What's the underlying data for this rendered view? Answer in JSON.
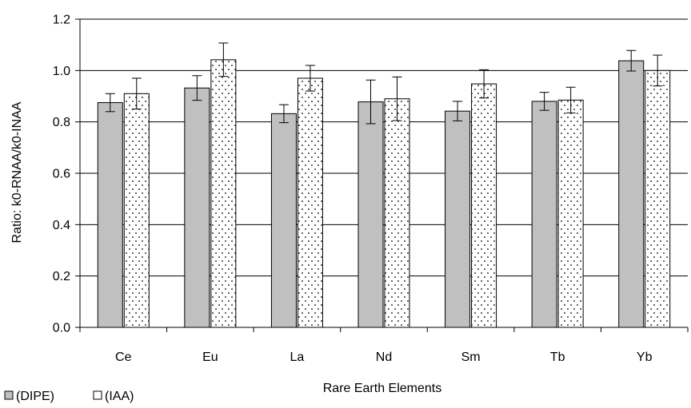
{
  "chart_data": {
    "type": "bar",
    "title": "",
    "xlabel": "Rare Earth Elements",
    "ylabel": "Ratio: k0-RNAA/k0-INAA",
    "categories": [
      "Ce",
      "Eu",
      "La",
      "Nd",
      "Sm",
      "Tb",
      "Yb"
    ],
    "ylim": [
      0,
      1.2
    ],
    "yticks": [
      "0.0",
      "0.2",
      "0.4",
      "0.6",
      "0.8",
      "1.0",
      "1.2"
    ],
    "grid": true,
    "legend_position": "bottom-left",
    "series": [
      {
        "name": "(DIPE)",
        "fill": "#c0c0c0",
        "pattern": "solid",
        "values": [
          0.875,
          0.932,
          0.832,
          0.878,
          0.842,
          0.88,
          1.038
        ],
        "errors": [
          0.035,
          0.048,
          0.035,
          0.085,
          0.038,
          0.035,
          0.04
        ]
      },
      {
        "name": "(IAA)",
        "fill": "#ffffff",
        "pattern": "dots",
        "values": [
          0.91,
          1.042,
          0.97,
          0.89,
          0.948,
          0.885,
          1.0
        ],
        "errors": [
          0.06,
          0.065,
          0.05,
          0.085,
          0.055,
          0.05,
          0.06
        ]
      }
    ]
  }
}
